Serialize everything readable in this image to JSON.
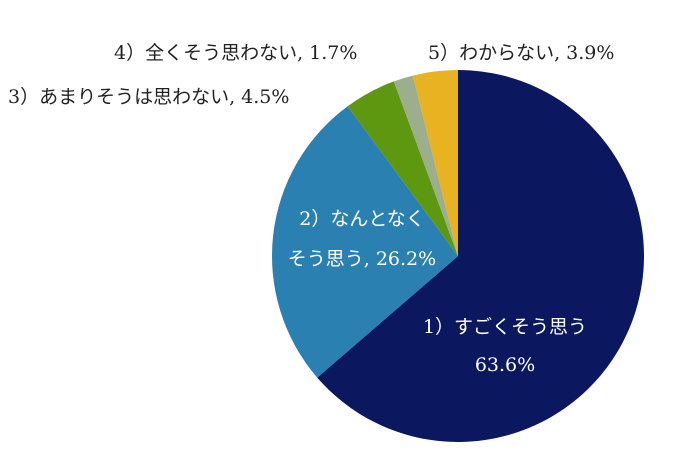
{
  "chart_data": {
    "type": "pie",
    "start": "top",
    "direction": "clockwise",
    "slices": [
      {
        "label": "1）すごくそう思う",
        "value": 63.6,
        "value_label": "63.6%",
        "color": "#0b1860"
      },
      {
        "label": "2）なんとなくそう思う",
        "value": 26.2,
        "value_label": "26.2%",
        "color": "#2b80b2"
      },
      {
        "label": "3）あまりそうは思わない",
        "value": 4.5,
        "value_label": "4.5%",
        "color": "#5e9710"
      },
      {
        "label": "4）全くそう思わない",
        "value": 1.7,
        "value_label": "1.7%",
        "color": "#9dae8c"
      },
      {
        "label": "5）わからない",
        "value": 3.9,
        "value_label": "3.9%",
        "color": "#e8b220"
      }
    ],
    "data_labels": [
      {
        "lines": [
          "1）すごくそう思う",
          "63.6%"
        ],
        "color": "#ffffff"
      },
      {
        "lines": [
          "2）なんとなく",
          "そう思う, 26.2%"
        ],
        "color": "#ffffff"
      },
      {
        "lines": [
          "3）あまりそうは思わない, 4.5%"
        ],
        "color": "#222222"
      },
      {
        "lines": [
          "4）全くそう思わない, 1.7%"
        ],
        "color": "#222222"
      },
      {
        "lines": [
          "5）わからない, 3.9%"
        ],
        "color": "#222222"
      }
    ]
  }
}
